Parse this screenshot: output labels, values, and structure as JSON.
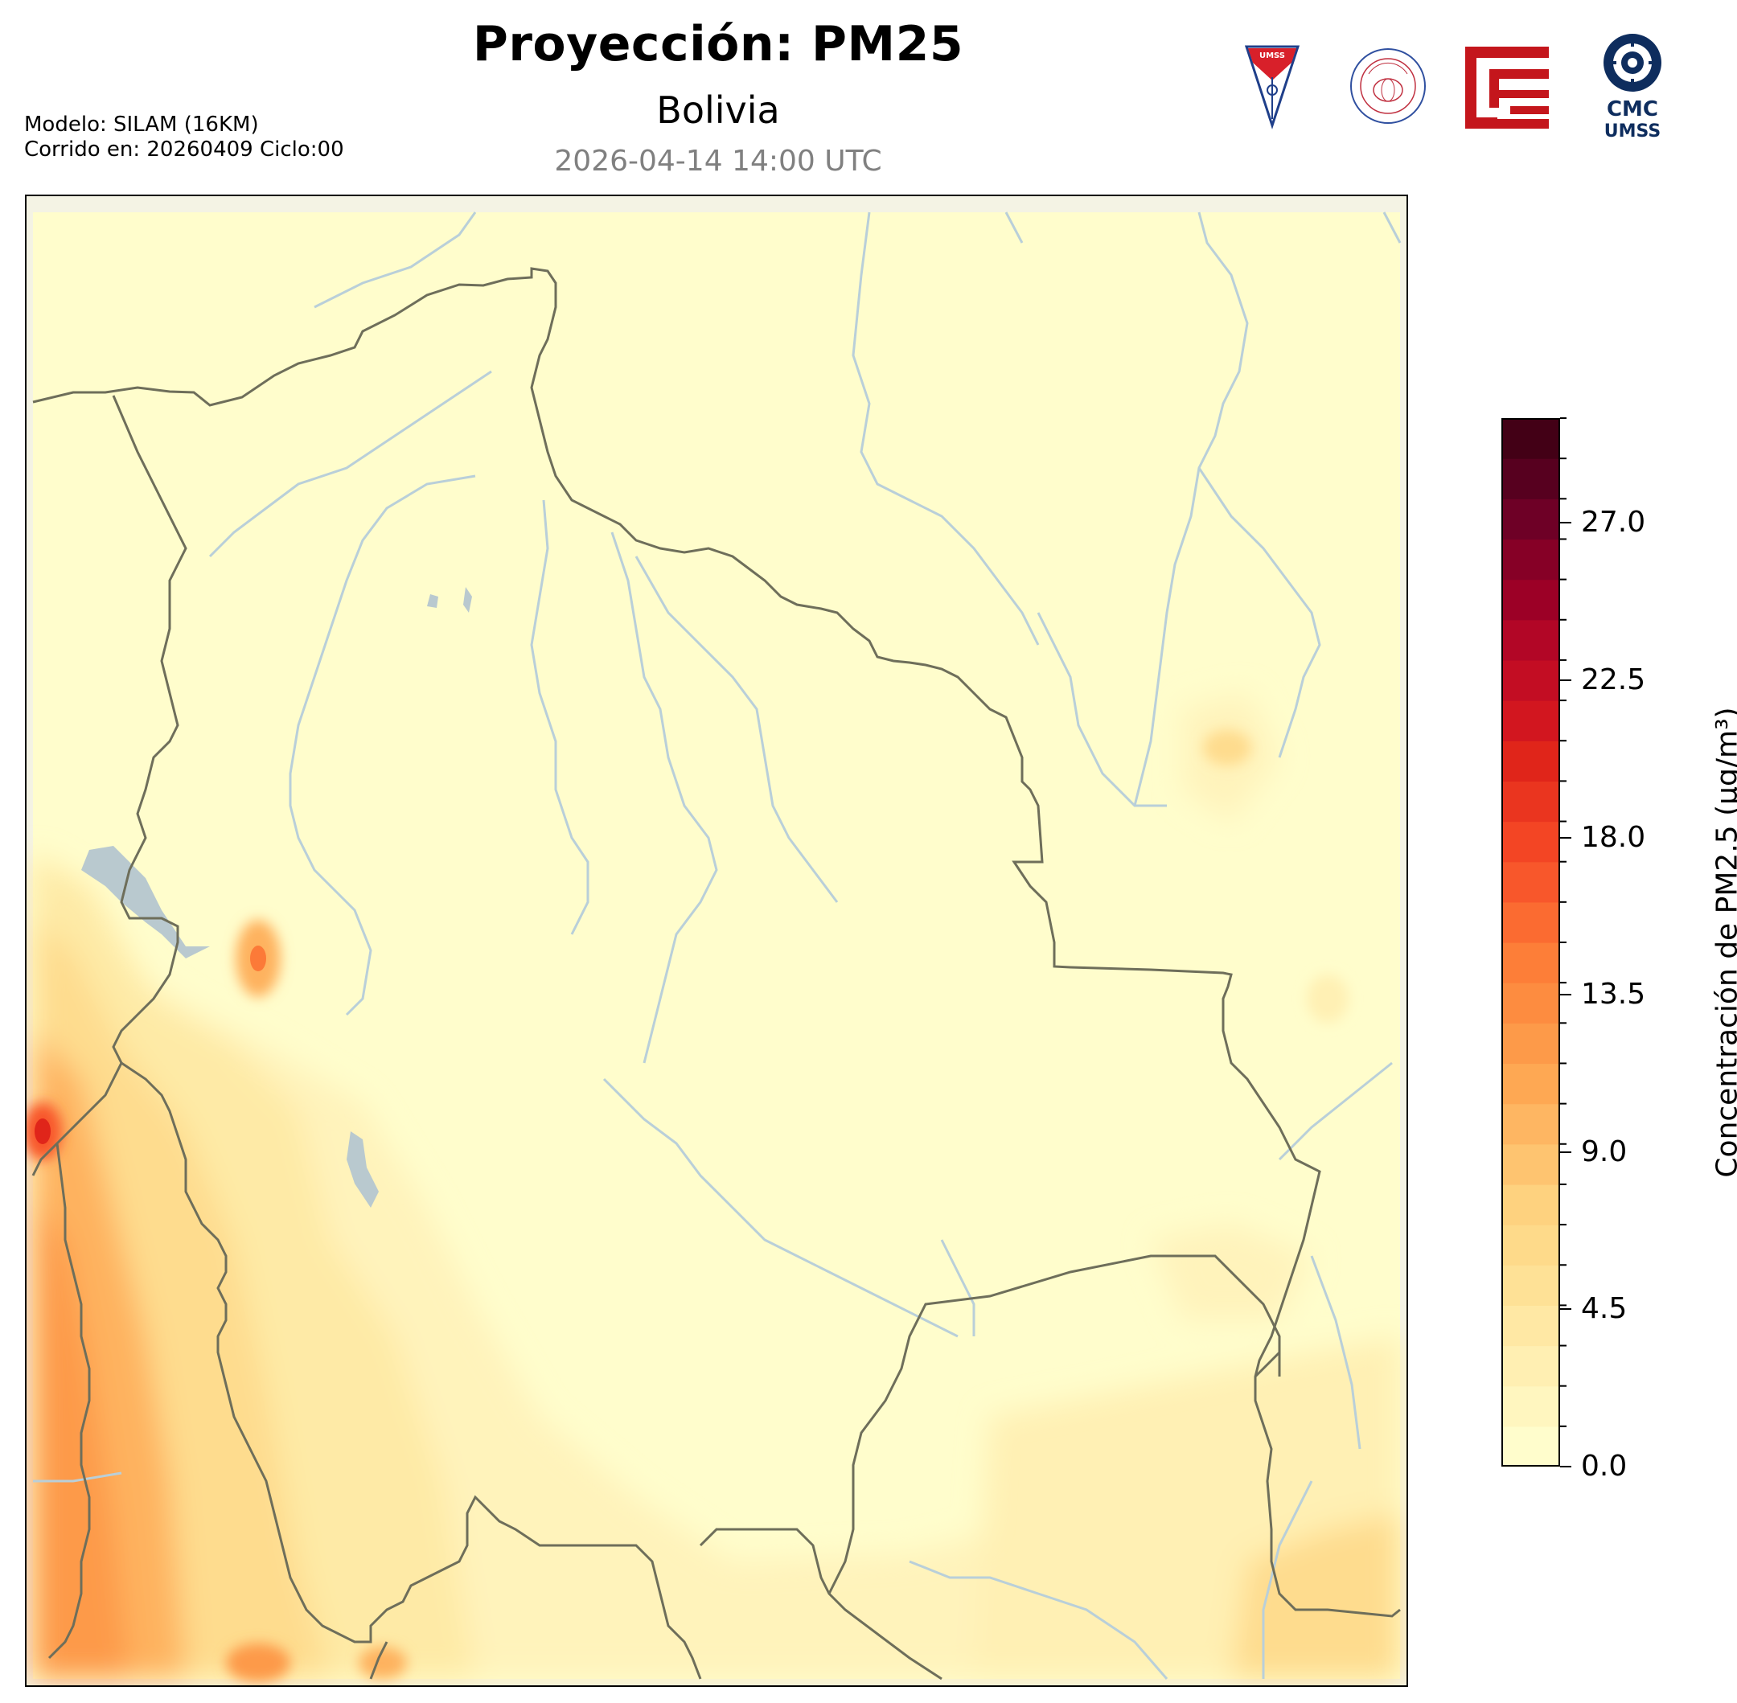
{
  "header": {
    "title": "Proyección: PM25",
    "subtitle": "Bolivia",
    "datetime": "2026-04-14 14:00 UTC"
  },
  "model_info": {
    "line1": "Modelo: SILAM (16KM)",
    "line2": "Corrido en: 20260409 Ciclo:00"
  },
  "logos": [
    {
      "name": "umss-shield-logo",
      "text": "UMSS"
    },
    {
      "name": "departamento-fisica-seal",
      "text": "DEPARTAMENTO DE FISICA"
    },
    {
      "name": "red-geometric-logo",
      "text": ""
    },
    {
      "name": "cmc-umss-logo",
      "text_top": "CMC",
      "text_bottom": "UMSS"
    }
  ],
  "colorbar": {
    "label": "Concentración de PM2.5 (µg/m³)",
    "ticks": [
      "0.0",
      "4.5",
      "9.0",
      "13.5",
      "18.0",
      "22.5",
      "27.0"
    ],
    "min": 0,
    "max": 30,
    "colors": [
      "#fffdcc",
      "#fff6bf",
      "#ffefb2",
      "#ffe8a4",
      "#fee196",
      "#feda8a",
      "#fed27f",
      "#fec470",
      "#feb662",
      "#fea853",
      "#fd9a49",
      "#fd8c40",
      "#fd7e38",
      "#fb6b31",
      "#f8572b",
      "#f34524",
      "#ea351f",
      "#e0251a",
      "#d2161f",
      "#c30d23",
      "#b20626",
      "#9c0026",
      "#860026",
      "#6e0026",
      "#57001f",
      "#430016"
    ]
  },
  "map": {
    "colors": {
      "background": "#fffdcc",
      "low": "#fff2b8",
      "mid": "#fedc8e",
      "high": "#feb25f",
      "peak": "#fc7a38",
      "border": "#6e6e5a",
      "river": "#b9cfd9"
    }
  }
}
